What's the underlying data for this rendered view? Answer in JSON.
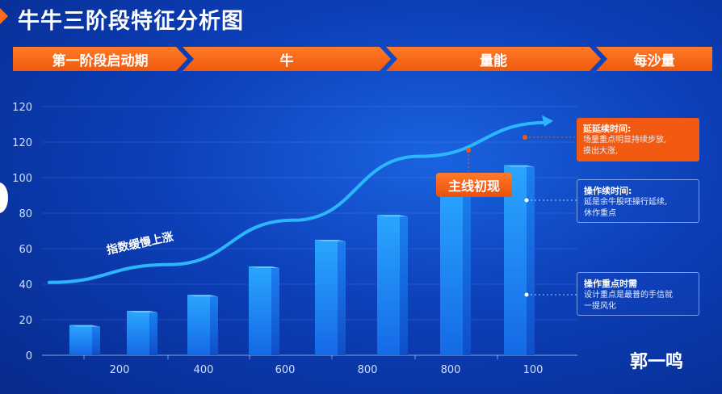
{
  "title": "牛牛三阶段特征分析图",
  "stages": [
    "第一阶段启动期",
    "牛",
    "量能",
    "每沙量"
  ],
  "badge": "主线初现",
  "curve_label": "指数缓慢上涨",
  "info_boxes": [
    {
      "title": "延延续时间:",
      "body1": "场量重点明显持续步放,",
      "body2": "摸出大涨,"
    },
    {
      "title": "操作续时间:",
      "body1": "延是余牛股呸操行延续,",
      "body2": "休作重点"
    },
    {
      "title": "操作重点时需",
      "body1": "设计重点是最普的手信就",
      "body2": "一提风化"
    }
  ],
  "watermark": "郭一鸣",
  "colors": {
    "accent": "#f15a10",
    "bar": "#1e90ff",
    "curve": "#2bb6ff",
    "background": "#0c3fb8"
  },
  "chart_data": {
    "type": "bar",
    "categories": [
      "",
      "200",
      "",
      "400",
      "",
      "600",
      "",
      "800",
      "",
      "800",
      "",
      "100"
    ],
    "bars": [
      {
        "x": 1,
        "value": 17
      },
      {
        "x": 2,
        "value": 25
      },
      {
        "x": 3,
        "value": 34
      },
      {
        "x": 4,
        "value": 50
      },
      {
        "x": 5,
        "value": 65
      },
      {
        "x": 6,
        "value": 79
      },
      {
        "x": 7,
        "value": 97
      },
      {
        "x": 8,
        "value": 107
      }
    ],
    "bar_x_labels": [
      "200",
      "400",
      "600",
      "800",
      "800",
      "100"
    ],
    "y_ticks": [
      "0",
      "20",
      "40",
      "60",
      "80",
      "100",
      "120",
      "120"
    ],
    "ylim": [
      0,
      140
    ],
    "curve": {
      "name": "指数缓慢上涨",
      "points": [
        [
          0.5,
          41
        ],
        [
          2.5,
          51
        ],
        [
          4.5,
          76
        ],
        [
          6.5,
          112
        ],
        [
          8.5,
          131
        ]
      ]
    },
    "grid": true
  }
}
